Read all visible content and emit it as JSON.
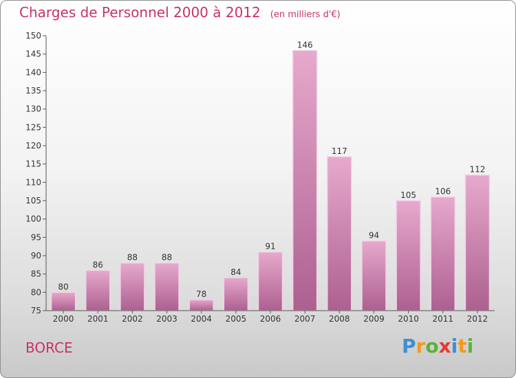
{
  "title": "Charges de Personnel 2000 à 2012",
  "subtitle": "(en milliers d'€)",
  "commune": "BORCE",
  "brand": {
    "letters": [
      "P",
      "r",
      "o",
      "x",
      "i",
      "t",
      "i"
    ],
    "colors": [
      "#3c8fd6",
      "#f39a1c",
      "#58b33c",
      "#e53935",
      "#3c8fd6",
      "#f39a1c",
      "#58b33c"
    ]
  },
  "colors": {
    "accent": "#c8316b",
    "bar_top": "#e7a9cd",
    "bar_bottom": "#ad6090"
  },
  "chart_data": {
    "type": "bar",
    "categories": [
      "2000",
      "2001",
      "2002",
      "2003",
      "2004",
      "2005",
      "2006",
      "2007",
      "2008",
      "2009",
      "2010",
      "2011",
      "2012"
    ],
    "values": [
      80,
      86,
      88,
      88,
      78,
      84,
      91,
      146,
      117,
      94,
      105,
      106,
      112
    ],
    "ylim": [
      75,
      150
    ],
    "yticks": [
      75,
      80,
      85,
      90,
      95,
      100,
      105,
      110,
      115,
      120,
      125,
      130,
      135,
      140,
      145,
      150
    ],
    "grid": false,
    "data_labels": true
  }
}
